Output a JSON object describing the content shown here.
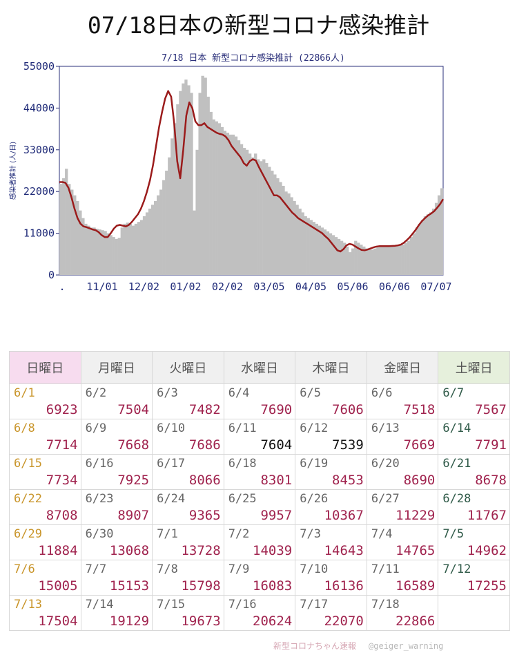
{
  "page_title": "07/18日本の新型コロナ感染推計",
  "chart_data": {
    "type": "bar",
    "title": "7/18 日本 新型コロナ感染推計 (22866人)",
    "ylabel": "感染者推計 (人/日)",
    "ylim": [
      0,
      55000
    ],
    "yticks": [
      "0",
      "11000",
      "22000",
      "33000",
      "44000",
      "55000"
    ],
    "xticks": [
      ".",
      "11/01",
      "12/02",
      "01/02",
      "02/02",
      "03/05",
      "04/05",
      "05/06",
      "06/06",
      "07/07"
    ],
    "series": [
      {
        "kind": "daily bars",
        "color": "#c0c0c0",
        "values": [
          24000,
          25500,
          28000,
          24000,
          22500,
          21000,
          19500,
          17000,
          15000,
          13500,
          13000,
          12500,
          12500,
          12200,
          12000,
          11800,
          11600,
          11000,
          10500,
          10000,
          9500,
          9800,
          12500,
          13500,
          13800,
          13500,
          13000,
          13500,
          14000,
          14500,
          15500,
          16500,
          17500,
          18500,
          19500,
          21000,
          22500,
          25000,
          27500,
          31000,
          36000,
          40000,
          45000,
          48500,
          50500,
          51500,
          50000,
          48000,
          17000,
          33000,
          48000,
          52500,
          52000,
          47000,
          43000,
          41000,
          40500,
          40000,
          39000,
          38000,
          37500,
          37000,
          37000,
          36500,
          35500,
          34500,
          33500,
          33000,
          32000,
          31000,
          32000,
          30500,
          30000,
          30500,
          29500,
          28500,
          27500,
          26500,
          25500,
          24500,
          23500,
          22000,
          21500,
          20500,
          19500,
          18500,
          17500,
          16500,
          15500,
          15000,
          14500,
          14000,
          13500,
          13000,
          12500,
          12000,
          11500,
          11000,
          10500,
          10000,
          9500,
          9000,
          8500,
          7500,
          6000,
          7000,
          9000,
          8500,
          8000,
          7500,
          7000,
          6800,
          6700,
          7000,
          7300,
          7500,
          7600,
          7600,
          7600,
          7600,
          7600,
          7700,
          7800,
          8000,
          8500,
          9000,
          10000,
          11000,
          12500,
          13500,
          14500,
          15500,
          16000,
          16500,
          17500,
          19000,
          21000,
          22866
        ]
      },
      {
        "kind": "moving average line",
        "color": "#9b1b1b",
        "values": [
          24500,
          24500,
          24300,
          23000,
          20500,
          17500,
          15000,
          13500,
          12800,
          12600,
          12300,
          12000,
          11800,
          11300,
          10500,
          10000,
          10000,
          11000,
          12200,
          13000,
          13200,
          13000,
          12800,
          13200,
          14000,
          15000,
          16000,
          17500,
          19500,
          22000,
          25000,
          29000,
          34000,
          39000,
          43000,
          46500,
          48500,
          47000,
          40000,
          30000,
          25500,
          33000,
          42000,
          45500,
          44000,
          40500,
          39500,
          39500,
          40000,
          39000,
          38500,
          38000,
          37500,
          37200,
          37000,
          36500,
          35500,
          34000,
          33000,
          32000,
          31000,
          29500,
          28800,
          30000,
          30500,
          30200,
          28500,
          27000,
          25500,
          24000,
          22500,
          21000,
          21000,
          20500,
          19500,
          18500,
          17500,
          16500,
          15800,
          15000,
          14500,
          14000,
          13500,
          13000,
          12500,
          12000,
          11500,
          11000,
          10200,
          9500,
          8500,
          7500,
          6500,
          6200,
          6800,
          7800,
          8200,
          8000,
          7500,
          7000,
          6600,
          6500,
          6700,
          7000,
          7300,
          7500,
          7600,
          7600,
          7600,
          7600,
          7650,
          7700,
          7800,
          8000,
          8500,
          9200,
          10000,
          11000,
          12000,
          13200,
          14200,
          15000,
          15700,
          16200,
          16800,
          17700,
          18700,
          20000
        ]
      }
    ]
  },
  "table": {
    "headers": [
      "日曜日",
      "月曜日",
      "火曜日",
      "水曜日",
      "木曜日",
      "金曜日",
      "土曜日"
    ],
    "rows": [
      [
        {
          "date": "6/1",
          "value": "6923"
        },
        {
          "date": "6/2",
          "value": "7504"
        },
        {
          "date": "6/3",
          "value": "7482"
        },
        {
          "date": "6/4",
          "value": "7690"
        },
        {
          "date": "6/5",
          "value": "7606"
        },
        {
          "date": "6/6",
          "value": "7518"
        },
        {
          "date": "6/7",
          "value": "7567"
        }
      ],
      [
        {
          "date": "6/8",
          "value": "7714"
        },
        {
          "date": "6/9",
          "value": "7668"
        },
        {
          "date": "6/10",
          "value": "7686"
        },
        {
          "date": "6/11",
          "value": "7604"
        },
        {
          "date": "6/12",
          "value": "7539"
        },
        {
          "date": "6/13",
          "value": "7669"
        },
        {
          "date": "6/14",
          "value": "7791"
        }
      ],
      [
        {
          "date": "6/15",
          "value": "7734"
        },
        {
          "date": "6/16",
          "value": "7925"
        },
        {
          "date": "6/17",
          "value": "8066"
        },
        {
          "date": "6/18",
          "value": "8301"
        },
        {
          "date": "6/19",
          "value": "8453"
        },
        {
          "date": "6/20",
          "value": "8690"
        },
        {
          "date": "6/21",
          "value": "8678"
        }
      ],
      [
        {
          "date": "6/22",
          "value": "8708"
        },
        {
          "date": "6/23",
          "value": "8907"
        },
        {
          "date": "6/24",
          "value": "9365"
        },
        {
          "date": "6/25",
          "value": "9957"
        },
        {
          "date": "6/26",
          "value": "10367"
        },
        {
          "date": "6/27",
          "value": "11229"
        },
        {
          "date": "6/28",
          "value": "11767"
        }
      ],
      [
        {
          "date": "6/29",
          "value": "11884"
        },
        {
          "date": "6/30",
          "value": "13068"
        },
        {
          "date": "7/1",
          "value": "13728"
        },
        {
          "date": "7/2",
          "value": "14039"
        },
        {
          "date": "7/3",
          "value": "14643"
        },
        {
          "date": "7/4",
          "value": "14765"
        },
        {
          "date": "7/5",
          "value": "14962"
        }
      ],
      [
        {
          "date": "7/6",
          "value": "15005"
        },
        {
          "date": "7/7",
          "value": "15153"
        },
        {
          "date": "7/8",
          "value": "15798"
        },
        {
          "date": "7/9",
          "value": "16083"
        },
        {
          "date": "7/10",
          "value": "16136"
        },
        {
          "date": "7/11",
          "value": "16589"
        },
        {
          "date": "7/12",
          "value": "17255"
        }
      ],
      [
        {
          "date": "7/13",
          "value": "17504"
        },
        {
          "date": "7/14",
          "value": "19129"
        },
        {
          "date": "7/15",
          "value": "19673"
        },
        {
          "date": "7/16",
          "value": "20624"
        },
        {
          "date": "7/17",
          "value": "22070"
        },
        {
          "date": "7/18",
          "value": "22866"
        },
        {
          "date": "",
          "value": ""
        }
      ]
    ]
  },
  "colors": {
    "value_red": "#a0234e",
    "value_black": "#111111",
    "sunday_date": "#c9952a",
    "saturday_date": "#2f5a48",
    "sunday_header_bg": "#f7dcef",
    "saturday_header_bg": "#e6f0dc"
  },
  "footer": {
    "brand": "新型コロナちゃん速報",
    "handle": "@geiger_warning"
  }
}
